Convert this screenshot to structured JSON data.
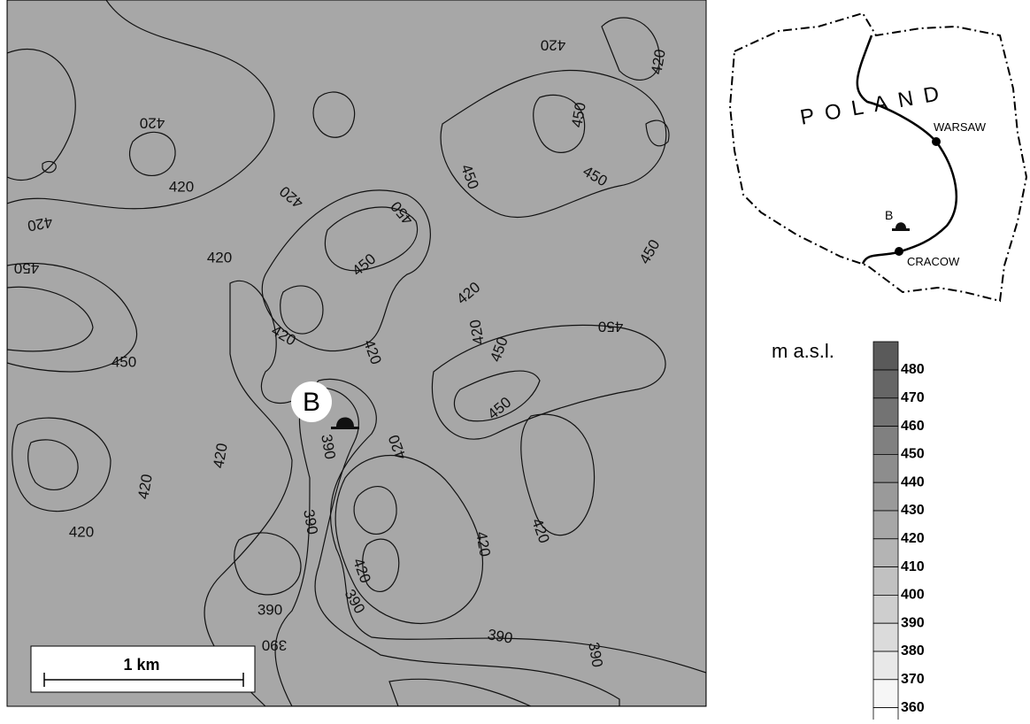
{
  "map": {
    "site_label": "B",
    "scale_bar": "1 km",
    "contour_labels": [
      "420",
      "420",
      "420",
      "450",
      "420",
      "450",
      "420",
      "450",
      "450",
      "420",
      "420",
      "420",
      "450",
      "450",
      "450",
      "420",
      "450",
      "450",
      "420",
      "420",
      "390",
      "390",
      "420",
      "420",
      "420",
      "420",
      "390",
      "390",
      "390",
      "390",
      "390",
      "420",
      "420",
      "420",
      "450",
      "450"
    ],
    "inset": {
      "country": "POLAND",
      "city_1": "WARSAW",
      "city_2": "CRACOW",
      "site_label": "B"
    },
    "legend": {
      "title": "m a.s.l.",
      "levels": [
        480,
        470,
        460,
        450,
        440,
        430,
        420,
        410,
        400,
        390,
        380,
        370,
        360
      ],
      "colors": [
        "#5a5a5a",
        "#666666",
        "#737373",
        "#808080",
        "#8d8d8d",
        "#9a9a9a",
        "#a7a7a7",
        "#b4b4b4",
        "#c1c1c1",
        "#cecece",
        "#dbdbdb",
        "#e8e8e8",
        "#f6f6f6",
        "#ffffff"
      ]
    }
  }
}
